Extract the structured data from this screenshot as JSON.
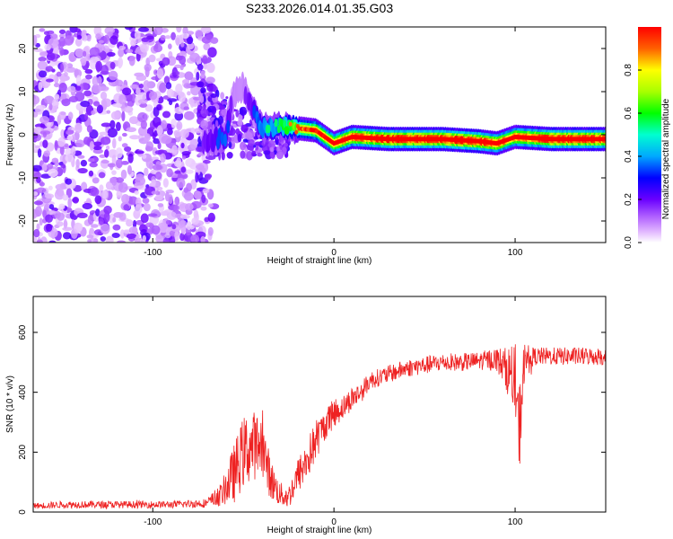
{
  "title": "S233.2026.014.01.35.G03",
  "colors": {
    "trace": "#ee2222",
    "axis": "#000000"
  },
  "chart_data": [
    {
      "type": "heatmap",
      "xlabel": "Height of straight line (km)",
      "ylabel": "Frequency (Hz)",
      "xlim": [
        -166,
        150
      ],
      "ylim": [
        -25,
        25
      ],
      "xticks": [
        -100,
        0,
        100
      ],
      "xtick_labels": [
        "-100",
        "0",
        "100"
      ],
      "yticks": [
        -20,
        -10,
        0,
        10,
        20
      ],
      "ytick_labels": [
        "-20",
        "-10",
        "0",
        "10",
        "20"
      ],
      "colorbar": {
        "label": "Normalized spectral amplitude",
        "range": [
          0,
          1
        ],
        "ticks": [
          0.0,
          0.2,
          0.4,
          0.6,
          0.8
        ],
        "tick_labels": [
          "0.0",
          "0.2",
          "0.4",
          "0.6",
          "0.8"
        ]
      },
      "ridge": [
        {
          "x": -70,
          "f": -1.5,
          "a": 0.25
        },
        {
          "x": -60,
          "f": -0.5,
          "a": 0.35
        },
        {
          "x": -55,
          "f": 10,
          "a": 0.15
        },
        {
          "x": -50,
          "f": 11,
          "a": 0.15
        },
        {
          "x": -40,
          "f": 1.5,
          "a": 0.4
        },
        {
          "x": -30,
          "f": 2,
          "a": 0.45
        },
        {
          "x": -20,
          "f": 1.5,
          "a": 0.6
        },
        {
          "x": -10,
          "f": 1,
          "a": 0.75
        },
        {
          "x": 0,
          "f": -2,
          "a": 0.8
        },
        {
          "x": 10,
          "f": -0.5,
          "a": 0.85
        },
        {
          "x": 30,
          "f": -1,
          "a": 0.95
        },
        {
          "x": 60,
          "f": -1,
          "a": 0.95
        },
        {
          "x": 80,
          "f": -1.5,
          "a": 0.95
        },
        {
          "x": 90,
          "f": -2,
          "a": 0.85
        },
        {
          "x": 100,
          "f": -0.5,
          "a": 0.8
        },
        {
          "x": 120,
          "f": -1,
          "a": 0.95
        },
        {
          "x": 150,
          "f": -1,
          "a": 0.9
        }
      ]
    },
    {
      "type": "line",
      "xlabel": "Height of straight line (km)",
      "ylabel": "SNR (10 * v/v)",
      "xlim": [
        -166,
        150
      ],
      "ylim": [
        0,
        720
      ],
      "xticks": [
        -100,
        0,
        100
      ],
      "xtick_labels": [
        "-100",
        "0",
        "100"
      ],
      "yticks": [
        0,
        200,
        400,
        600
      ],
      "ytick_labels": [
        "0",
        "200",
        "400",
        "600"
      ],
      "series": [
        {
          "name": "SNR",
          "x": [
            -166,
            -150,
            -120,
            -90,
            -70,
            -62,
            -55,
            -50,
            -45,
            -40,
            -35,
            -30,
            -25,
            -20,
            -15,
            -10,
            -5,
            0,
            5,
            10,
            15,
            20,
            30,
            40,
            50,
            60,
            70,
            80,
            90,
            95,
            100,
            102,
            105,
            110,
            120,
            130,
            140,
            150
          ],
          "values": [
            20,
            25,
            25,
            25,
            30,
            60,
            130,
            200,
            220,
            230,
            110,
            60,
            50,
            120,
            170,
            240,
            290,
            330,
            350,
            380,
            400,
            440,
            460,
            480,
            490,
            500,
            500,
            505,
            510,
            480,
            440,
            250,
            500,
            520,
            520,
            520,
            520,
            520
          ],
          "noise": [
            10,
            12,
            12,
            12,
            15,
            40,
            100,
            120,
            120,
            100,
            70,
            40,
            40,
            60,
            70,
            70,
            50,
            50,
            40,
            40,
            35,
            30,
            30,
            30,
            30,
            30,
            30,
            30,
            40,
            70,
            130,
            170,
            70,
            30,
            30,
            30,
            30,
            30
          ]
        }
      ]
    }
  ]
}
